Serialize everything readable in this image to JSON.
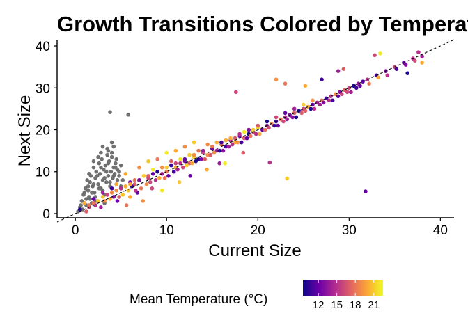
{
  "chart_data": {
    "type": "scatter",
    "title": "Growth Transitions Colored by Temperature",
    "xlabel": "Current Size",
    "ylabel": "Next Size",
    "xlim": [
      -2,
      41.5
    ],
    "ylim": [
      -1,
      41.5
    ],
    "x_ticks": [
      0,
      10,
      20,
      30,
      40
    ],
    "y_ticks": [
      0,
      10,
      20,
      30,
      40
    ],
    "x_tick_labels": [
      "0",
      "10",
      "20",
      "30",
      "40"
    ],
    "y_tick_labels": [
      "0",
      "10",
      "20",
      "30",
      "40"
    ],
    "reference_line": {
      "style": "dashed",
      "slope": 1,
      "intercept": 0
    },
    "grid": false,
    "legend": {
      "title": "Mean Temperature (°C)",
      "position": "bottom",
      "type": "colorbar",
      "range": [
        9.5,
        22.5
      ],
      "ticks": [
        12,
        15,
        18,
        21
      ],
      "tick_labels": [
        "12",
        "15",
        "18",
        "21"
      ],
      "colormap": [
        "#0d0887",
        "#6a00a8",
        "#b12a90",
        "#e16462",
        "#fca636",
        "#f0f921"
      ]
    },
    "na_color": "#707070",
    "series": [
      {
        "x": [
          0.3,
          0.5,
          0.7,
          0.9,
          1.0,
          1.1,
          1.2,
          1.3,
          1.4,
          1.5,
          1.6,
          1.7,
          1.8,
          1.9,
          2.0,
          2.1,
          2.2,
          2.3,
          2.4,
          2.5,
          2.6,
          2.7,
          2.8,
          2.9,
          3.0,
          3.1,
          3.2,
          3.3,
          3.4,
          3.5,
          3.6,
          3.7,
          3.8,
          3.9,
          4.0,
          4.1,
          4.2,
          4.3,
          4.4,
          4.5,
          4.6,
          4.8,
          5.0,
          5.2,
          0.6,
          0.8,
          1.0,
          1.2,
          1.4,
          1.6,
          1.8,
          2.0,
          2.2,
          2.4,
          2.6,
          2.8,
          3.0,
          3.2,
          3.4,
          3.6,
          3.8,
          4.0,
          4.2,
          4.4,
          4.6,
          4.8,
          5.0,
          1.5,
          2.5,
          3.5,
          4.5,
          2.0,
          3.0,
          4.0,
          2.8,
          3.6,
          3.8,
          4.2,
          5.8,
          2.2,
          3.2
        ],
        "y": [
          0.5,
          1.5,
          3.0,
          4.5,
          2.5,
          6.0,
          3.5,
          8.0,
          5.5,
          4.0,
          7.5,
          9.0,
          2.5,
          6.5,
          11.0,
          5.0,
          8.5,
          10.0,
          3.0,
          7.0,
          12.0,
          9.5,
          6.0,
          13.0,
          8.0,
          10.5,
          4.5,
          11.5,
          7.5,
          14.0,
          9.0,
          12.5,
          6.5,
          10.0,
          13.5,
          8.5,
          11.0,
          9.5,
          12.0,
          7.0,
          10.5,
          9.0,
          11.5,
          8.0,
          2.0,
          1.0,
          5.0,
          2.0,
          6.5,
          3.5,
          5.0,
          7.0,
          4.0,
          9.0,
          6.0,
          11.0,
          5.5,
          8.5,
          10.0,
          12.0,
          7.5,
          14.5,
          9.0,
          11.0,
          8.0,
          10.0,
          6.5,
          9.5,
          13.5,
          15.5,
          13.0,
          12.5,
          16.0,
          17.0,
          14.5,
          15.0,
          24.2,
          16.0,
          23.6,
          3.0,
          2.5
        ]
      },
      {
        "x": [
          0.5,
          1.0,
          1.5,
          2.0,
          2.5,
          3.0,
          3.5,
          4.0,
          4.5,
          5.0,
          5.5,
          6.0,
          6.5,
          7.0,
          7.5,
          8.0,
          8.5,
          9.0,
          9.5,
          10.0,
          10.5,
          11.0,
          11.5,
          12.0,
          12.5,
          13.0,
          13.5,
          14.0,
          14.5,
          15.0,
          15.5,
          16.0,
          16.5,
          17.0,
          17.5,
          18.0,
          18.5,
          19.0,
          19.5,
          20.0,
          20.5,
          21.0,
          21.5,
          22.0,
          22.5,
          23.0,
          23.5,
          24.0,
          24.5,
          25.0,
          25.5,
          26.0,
          26.5,
          27.0,
          27.5,
          28.0,
          28.5,
          29.0,
          29.5,
          30.0,
          30.5,
          31.0,
          31.5,
          32.0,
          33.0,
          34.0,
          35.0,
          36.0,
          37.0,
          38.0,
          1.2,
          2.2,
          3.2,
          4.2,
          5.2,
          6.2,
          7.2,
          8.2,
          9.2,
          10.2,
          11.2,
          12.2,
          13.2,
          14.2,
          15.2,
          16.2,
          17.2,
          18.2,
          19.2,
          20.2,
          21.2,
          22.2,
          23.2,
          24.2,
          25.2,
          26.2,
          27.2,
          28.2,
          29.2,
          30.2,
          31.2,
          32.2,
          33.2,
          34.2,
          35.2,
          36.2,
          37.2,
          2.8,
          3.8,
          4.8,
          5.8,
          6.8,
          7.8,
          8.8,
          9.8,
          10.8,
          11.8,
          12.8,
          13.8,
          14.8,
          15.8,
          16.8,
          17.8,
          18.8,
          19.8,
          20.8,
          21.8,
          22.8,
          23.8,
          24.8,
          25.8,
          26.8,
          27.8,
          28.8,
          29.8,
          30.8,
          2.0,
          3.0,
          4.0,
          5.0,
          6.0,
          7.0,
          8.0,
          9.0,
          10.0,
          11.0,
          12.0,
          13.0,
          14.0,
          15.0,
          16.0,
          17.0,
          18.0,
          19.0,
          20.0,
          21.0,
          22.0,
          23.0,
          24.0,
          25.0,
          26.0,
          4.5,
          6.5,
          8.5,
          10.5,
          12.5,
          14.5,
          16.5,
          18.5,
          1.5,
          3.5,
          5.5,
          7.5,
          9.5,
          11.5,
          13.5,
          15.5,
          17.5,
          19.5,
          5.5,
          7.0,
          8.0,
          9.0,
          10.0,
          11.0,
          12.0,
          13.0,
          6.0,
          9.5,
          5.6,
          7.4,
          11.4,
          14.4,
          16.4,
          18.4,
          22.0,
          23.2,
          21.3,
          17.6,
          23.0,
          25.2,
          27.0,
          28.8,
          31.8,
          29.4,
          32.8,
          33.4,
          38.0,
          37.6,
          36.4,
          4.6,
          6.6,
          8.4,
          12.6,
          15.8
        ],
        "y": [
          1.0,
          2.5,
          1.5,
          3.5,
          3.0,
          5.0,
          4.5,
          6.0,
          5.5,
          6.0,
          6.5,
          7.5,
          7.0,
          8.0,
          9.0,
          8.5,
          9.5,
          10.0,
          9.5,
          10.0,
          11.5,
          11.0,
          12.0,
          12.5,
          12.0,
          13.5,
          13.0,
          14.5,
          14.0,
          15.5,
          15.0,
          16.5,
          16.0,
          17.5,
          17.0,
          18.5,
          18.0,
          19.0,
          19.5,
          20.5,
          20.0,
          21.0,
          21.5,
          22.0,
          22.5,
          23.0,
          23.5,
          24.0,
          24.5,
          25.0,
          25.5,
          26.0,
          26.5,
          27.0,
          27.5,
          28.0,
          28.5,
          29.0,
          29.5,
          30.0,
          30.5,
          31.0,
          31.5,
          32.0,
          33.0,
          34.0,
          35.0,
          36.0,
          37.0,
          37.5,
          0.5,
          2.0,
          3.0,
          4.0,
          4.5,
          6.5,
          6.0,
          7.5,
          8.5,
          9.0,
          10.5,
          11.5,
          12.5,
          13.0,
          14.5,
          15.0,
          16.5,
          17.0,
          18.5,
          19.0,
          20.5,
          21.0,
          22.5,
          23.0,
          24.5,
          25.0,
          26.5,
          27.0,
          28.5,
          29.0,
          30.5,
          31.0,
          32.5,
          33.0,
          34.5,
          35.5,
          36.5,
          1.5,
          3.5,
          4.0,
          5.5,
          5.0,
          7.0,
          8.0,
          8.5,
          10.0,
          11.0,
          12.0,
          13.0,
          14.0,
          15.0,
          16.0,
          17.0,
          18.0,
          19.0,
          20.0,
          21.0,
          22.0,
          23.0,
          24.0,
          25.0,
          26.0,
          27.0,
          28.0,
          29.0,
          30.0,
          2.5,
          4.0,
          5.0,
          6.0,
          7.0,
          8.0,
          9.0,
          10.0,
          11.0,
          12.0,
          13.0,
          14.0,
          15.0,
          16.0,
          17.0,
          18.0,
          19.0,
          20.0,
          21.0,
          22.0,
          23.0,
          24.0,
          25.0,
          26.0,
          27.0,
          7.0,
          8.0,
          10.5,
          12.5,
          14.0,
          16.5,
          17.5,
          19.5,
          2.0,
          4.5,
          6.5,
          9.0,
          11.0,
          13.0,
          15.0,
          17.0,
          18.0,
          20.0,
          9.5,
          11.0,
          12.5,
          13.0,
          14.5,
          15.0,
          16.0,
          17.0,
          4.0,
          5.5,
          2.0,
          3.0,
          7.5,
          10.5,
          12.0,
          14.5,
          32.0,
          8.4,
          12.2,
          29.0,
          31.0,
          30.5,
          32.0,
          34.0,
          5.3,
          34.5,
          37.8,
          38.2,
          36.0,
          38.5,
          33.5,
          3.0,
          5.5,
          6.0,
          9.0,
          12.0
        ],
        "color_value": [
          10,
          20,
          16,
          12,
          21,
          14,
          18,
          11,
          19,
          15,
          20,
          13,
          17,
          10,
          21,
          16,
          12,
          19,
          14,
          18,
          11,
          20,
          15,
          13,
          17,
          21,
          10,
          16,
          19,
          12,
          14,
          18,
          11,
          15,
          20,
          13,
          17,
          10,
          16,
          21,
          12,
          14,
          19,
          11,
          18,
          15,
          13,
          17,
          10,
          16,
          20,
          12,
          14,
          18,
          11,
          15,
          19,
          13,
          17,
          16,
          10,
          14,
          12,
          15,
          11,
          13,
          16,
          12,
          15,
          14,
          17,
          15,
          19,
          13,
          21,
          11,
          18,
          16,
          20,
          12,
          14,
          21,
          10,
          17,
          19,
          13,
          15,
          11,
          18,
          20,
          16,
          12,
          14,
          10,
          17,
          15,
          13,
          11,
          16,
          14,
          12,
          18,
          20,
          15,
          11,
          13,
          16,
          14,
          20,
          17,
          21,
          12,
          19,
          15,
          18,
          11,
          16,
          20,
          13,
          17,
          10,
          14,
          19,
          12,
          15,
          18,
          11,
          16,
          13,
          17,
          10,
          14,
          15,
          12,
          16,
          11,
          18,
          21,
          19,
          15,
          20,
          13,
          17,
          10,
          21,
          16,
          12,
          19,
          14,
          18,
          11,
          20,
          15,
          13,
          17,
          10,
          16,
          12,
          14,
          21,
          19,
          20,
          18,
          22,
          17,
          21,
          19,
          20,
          22,
          18,
          16,
          20,
          21,
          19,
          22,
          18,
          20,
          17,
          21,
          20,
          19,
          21,
          18,
          22,
          20,
          19,
          21,
          20,
          22,
          18,
          19,
          21,
          20,
          22,
          17,
          19,
          21,
          15,
          16,
          18,
          20,
          11,
          14,
          12,
          17,
          16,
          22,
          20,
          15,
          10,
          12,
          15,
          16,
          12,
          14,
          20,
          19,
          21,
          18,
          15
        ]
      }
    ]
  }
}
